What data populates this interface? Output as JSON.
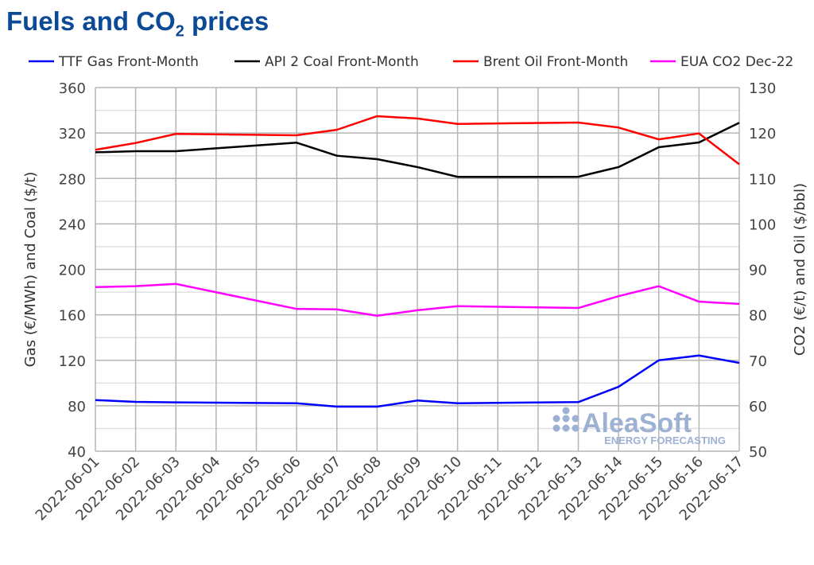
{
  "title": {
    "main": "Fuels and CO",
    "sub": "2",
    "rest": " prices"
  },
  "watermark": {
    "brand": "AleaSoft",
    "tagline": "ENERGY FORECASTING"
  },
  "chart_data": {
    "type": "line",
    "title": "Fuels and CO2 prices",
    "x": [
      "2022-06-01",
      "2022-06-02",
      "2022-06-03",
      "2022-06-04",
      "2022-06-05",
      "2022-06-06",
      "2022-06-07",
      "2022-06-08",
      "2022-06-09",
      "2022-06-10",
      "2022-06-11",
      "2022-06-12",
      "2022-06-13",
      "2022-06-14",
      "2022-06-15",
      "2022-06-16",
      "2022-06-17"
    ],
    "ylabel": "Gas (€/MWh) and Coal ($/t)",
    "y2label": "CO2 (€/t) and Oil ($/bbl)",
    "ylim": [
      40,
      360
    ],
    "yticks": [
      40,
      80,
      120,
      160,
      200,
      240,
      280,
      320,
      360
    ],
    "y2lim": [
      50,
      130
    ],
    "y2ticks": [
      50,
      60,
      70,
      80,
      90,
      100,
      110,
      120,
      130
    ],
    "grid": true,
    "legend": "top",
    "series": [
      {
        "name": "TTF Gas Front-Month",
        "axis": "left",
        "color": "#0000ff",
        "values": [
          85.0,
          83.4,
          83.0,
          null,
          null,
          82.2,
          79.2,
          79.2,
          84.6,
          82.2,
          null,
          null,
          83.2,
          96.7,
          120.0,
          124.2,
          117.7
        ]
      },
      {
        "name": "API 2 Coal Front-Month",
        "axis": "left",
        "color": "#000000",
        "values": [
          303,
          304,
          304,
          null,
          null,
          311.5,
          300,
          297,
          290,
          281.4,
          null,
          null,
          281.5,
          290,
          307.5,
          311.7,
          329
        ]
      },
      {
        "name": "Brent Oil Front-Month",
        "axis": "right",
        "color": "#ff0000",
        "values": [
          116.3,
          117.8,
          119.8,
          null,
          null,
          119.5,
          120.7,
          123.7,
          123.2,
          122.0,
          null,
          null,
          122.3,
          121.2,
          118.6,
          119.9,
          113.1
        ]
      },
      {
        "name": "EUA CO2 Dec-22",
        "axis": "right",
        "color": "#ff00ff",
        "values": [
          86.1,
          86.3,
          86.8,
          null,
          null,
          81.3,
          81.2,
          79.8,
          81.0,
          81.9,
          null,
          null,
          81.5,
          84.1,
          86.3,
          82.9,
          82.4
        ]
      }
    ]
  }
}
